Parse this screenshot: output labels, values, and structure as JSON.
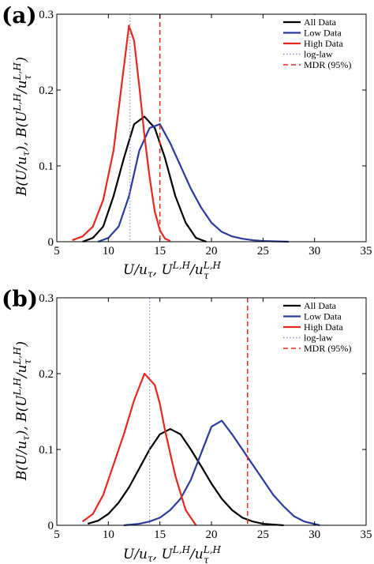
{
  "figure": {
    "panels": [
      {
        "label": "(a)"
      },
      {
        "label": "(b)"
      }
    ]
  },
  "chart_data": [
    {
      "type": "line",
      "panel": "(a)",
      "xlabel": "U/u_τ, U^{L,H}/u_τ^{L,H}",
      "ylabel": "B(U/u_τ), B(U^{L,H}/u_τ^{L,H})",
      "xlim": [
        5,
        35
      ],
      "ylim": [
        0,
        0.3
      ],
      "xticks": [
        "5",
        "10",
        "15",
        "20",
        "25",
        "30",
        "35"
      ],
      "yticks": [
        "0",
        "0.1",
        "0.2",
        "0.3"
      ],
      "grid": false,
      "legend_position": "top-right",
      "series": [
        {
          "name": "All Data",
          "color": "#000000",
          "style": "solid",
          "x": [
            7.5,
            8.5,
            9.5,
            10.5,
            11.5,
            12.5,
            13.5,
            14.5,
            15.5,
            16.5,
            17.5,
            18.5,
            19.5
          ],
          "y": [
            0.0,
            0.005,
            0.02,
            0.06,
            0.11,
            0.155,
            0.165,
            0.15,
            0.11,
            0.06,
            0.025,
            0.005,
            0.0
          ]
        },
        {
          "name": "Low Data",
          "color": "#2b3b9c",
          "style": "solid",
          "x": [
            9,
            10,
            11,
            12,
            13,
            14,
            15,
            16,
            17,
            18,
            19,
            20,
            21,
            22,
            23,
            24,
            25,
            26,
            27.5
          ],
          "y": [
            0.0,
            0.005,
            0.02,
            0.06,
            0.12,
            0.15,
            0.155,
            0.13,
            0.1,
            0.07,
            0.045,
            0.025,
            0.013,
            0.007,
            0.004,
            0.002,
            0.001,
            0.0005,
            0.0
          ]
        },
        {
          "name": "High Data",
          "color": "#e3281f",
          "style": "solid",
          "x": [
            6.5,
            7.5,
            8.5,
            9.5,
            10.5,
            11.5,
            12.0,
            12.5,
            13.0,
            13.5,
            14.0,
            14.5,
            15.0,
            15.5,
            16.0
          ],
          "y": [
            0.002,
            0.007,
            0.02,
            0.055,
            0.12,
            0.23,
            0.285,
            0.265,
            0.205,
            0.14,
            0.085,
            0.04,
            0.015,
            0.004,
            0.001
          ]
        }
      ],
      "reference_lines": [
        {
          "name": "log-law",
          "x": 12.1,
          "color": "#8a8fd8",
          "style": "dotted"
        },
        {
          "name": "MDR (95%)",
          "x": 15.0,
          "color": "#e3281f",
          "style": "dashed"
        }
      ]
    },
    {
      "type": "line",
      "panel": "(b)",
      "xlabel": "U/u_τ, U^{L,H}/u_τ^{L,H}",
      "ylabel": "B(U/u_τ), B(U^{L,H}/u_τ^{L,H})",
      "xlim": [
        5,
        35
      ],
      "ylim": [
        0,
        0.3
      ],
      "xticks": [
        "5",
        "10",
        "15",
        "20",
        "25",
        "30",
        "35"
      ],
      "yticks": [
        "0",
        "0.1",
        "0.2",
        "0.3"
      ],
      "grid": false,
      "legend_position": "top-right",
      "series": [
        {
          "name": "All Data",
          "color": "#000000",
          "style": "solid",
          "x": [
            8,
            9,
            10,
            11,
            12,
            13,
            14,
            15,
            16,
            17,
            18,
            19,
            20,
            21,
            22,
            23,
            24,
            25,
            26,
            27
          ],
          "y": [
            0.002,
            0.006,
            0.015,
            0.03,
            0.05,
            0.075,
            0.1,
            0.12,
            0.127,
            0.12,
            0.1,
            0.078,
            0.055,
            0.035,
            0.02,
            0.01,
            0.005,
            0.002,
            0.001,
            0.0
          ]
        },
        {
          "name": "Low Data",
          "color": "#2b3b9c",
          "style": "solid",
          "x": [
            11.5,
            13,
            14,
            15,
            16,
            17,
            18,
            19,
            20,
            21,
            22,
            23,
            24,
            25,
            26,
            27,
            28,
            29,
            30.5
          ],
          "y": [
            0.0,
            0.002,
            0.005,
            0.01,
            0.02,
            0.035,
            0.06,
            0.095,
            0.13,
            0.138,
            0.12,
            0.1,
            0.08,
            0.06,
            0.04,
            0.025,
            0.012,
            0.005,
            0.0
          ]
        },
        {
          "name": "High Data",
          "color": "#e3281f",
          "style": "solid",
          "x": [
            7.5,
            8.5,
            9.5,
            10.5,
            11.5,
            12.5,
            13.5,
            14.5,
            15.0,
            15.5,
            16.5,
            17.5,
            18.5
          ],
          "y": [
            0.005,
            0.015,
            0.04,
            0.08,
            0.12,
            0.165,
            0.2,
            0.185,
            0.16,
            0.125,
            0.065,
            0.02,
            0.0
          ]
        }
      ],
      "reference_lines": [
        {
          "name": "log-law",
          "x": 14.0,
          "color": "#8a8fd8",
          "style": "dotted"
        },
        {
          "name": "MDR (95%)",
          "x": 23.5,
          "color": "#e3281f",
          "style": "dashed"
        }
      ]
    }
  ]
}
